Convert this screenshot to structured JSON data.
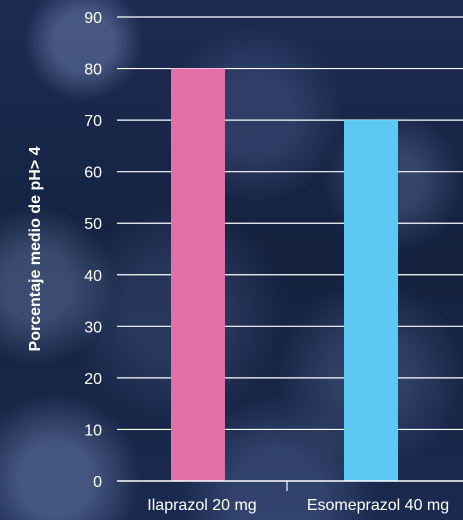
{
  "chart_data": {
    "type": "bar",
    "categories": [
      "Ilaprazol 20 mg",
      "Esomeprazol 40 mg"
    ],
    "values": [
      80,
      70
    ],
    "colors": [
      "#e26fa8",
      "#5cc9f5"
    ],
    "title": "",
    "xlabel": "",
    "ylabel": "Porcentaje medio de pH> 4",
    "ylim": [
      0,
      90
    ],
    "yticks": [
      0,
      10,
      20,
      30,
      40,
      50,
      60,
      70,
      80,
      90
    ],
    "grid": true,
    "gridline_color": "#ffffff"
  }
}
